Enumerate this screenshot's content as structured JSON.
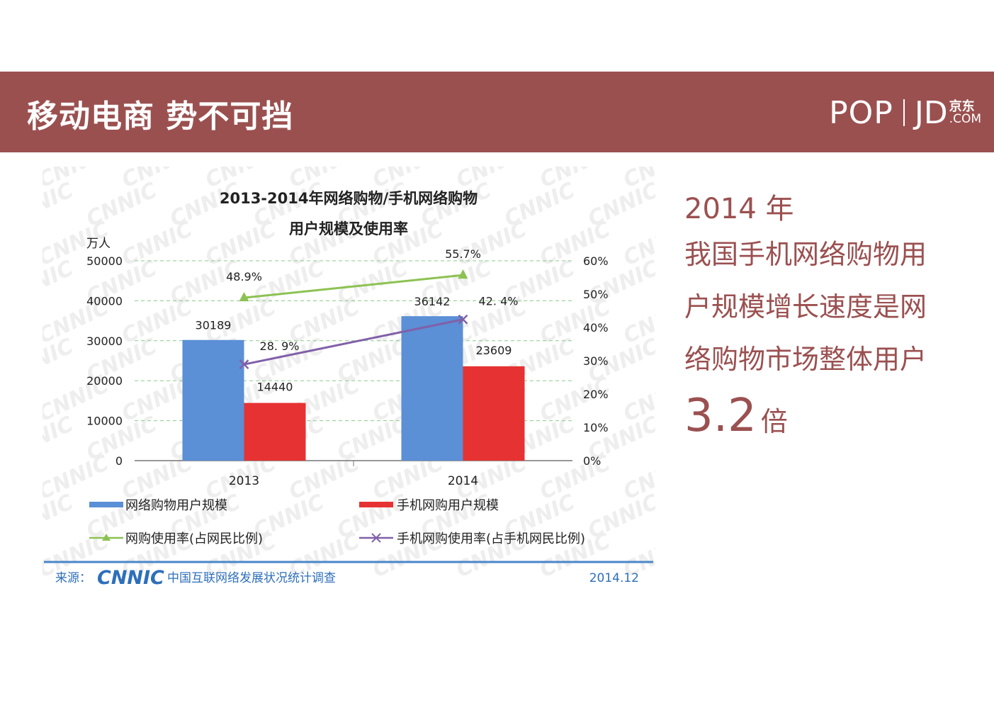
{
  "header": {
    "title": "移动电商 势不可挡",
    "brand_pop": "POP",
    "brand_jd": "JD",
    "brand_jd_cn": "京东",
    "brand_jd_com": ".COM",
    "colors": {
      "banner": "#9b5050",
      "text": "#ffffff"
    }
  },
  "chart_data": {
    "type": "bar",
    "title_line1": "2013-2014年网络购物/手机网络购物",
    "title_line2": "用户规模及使用率",
    "ylabel": "万人",
    "categories": [
      "2013",
      "2014"
    ],
    "ylim": [
      0,
      50000
    ],
    "y_ticks": [
      "0",
      "10000",
      "20000",
      "30000",
      "40000",
      "50000"
    ],
    "y2lim": [
      0,
      60
    ],
    "y2_ticks": [
      "0%",
      "10%",
      "20%",
      "30%",
      "40%",
      "50%",
      "60%"
    ],
    "grid": true,
    "series": [
      {
        "name": "网络购物用户规模",
        "kind": "bar",
        "axis": "left",
        "values": [
          30189,
          36142
        ],
        "labels": [
          "30189",
          "36142"
        ],
        "color": "#5b8fd6"
      },
      {
        "name": "手机网购用户规模",
        "kind": "bar",
        "axis": "left",
        "values": [
          14440,
          23609
        ],
        "labels": [
          "14440",
          "23609"
        ],
        "color": "#e63232"
      },
      {
        "name": "网购使用率(占网民比例)",
        "kind": "line",
        "axis": "right",
        "values": [
          48.9,
          55.7
        ],
        "labels": [
          "48.9%",
          "55.7%"
        ],
        "color": "#8cc252"
      },
      {
        "name": "手机网购使用率(占手机网民比例)",
        "kind": "line",
        "axis": "right",
        "values": [
          28.9,
          42.4
        ],
        "labels": [
          "28. 9%",
          "42. 4%"
        ],
        "color": "#8060a8"
      }
    ],
    "source_label": "来源：",
    "source_logo": "CNNIC",
    "source_text": "中国互联网络发展状况统计调查",
    "source_date": "2014.12",
    "watermark": "CNNIC"
  },
  "side": {
    "year": "2014 年",
    "lines": [
      "我国手机网络购物用",
      "户规模增长速度是网",
      "络购物市场整体用户"
    ],
    "multiple": "3.2",
    "unit": "倍"
  }
}
